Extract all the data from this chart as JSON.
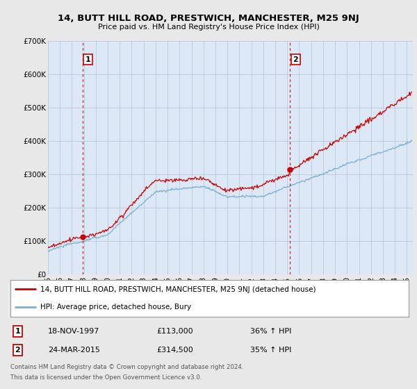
{
  "title": "14, BUTT HILL ROAD, PRESTWICH, MANCHESTER, M25 9NJ",
  "subtitle": "Price paid vs. HM Land Registry's House Price Index (HPI)",
  "ylim": [
    0,
    700000
  ],
  "yticks": [
    0,
    100000,
    200000,
    300000,
    400000,
    500000,
    600000,
    700000
  ],
  "ytick_labels": [
    "£0",
    "£100K",
    "£200K",
    "£300K",
    "£400K",
    "£500K",
    "£600K",
    "£700K"
  ],
  "xlim_start": 1995.0,
  "xlim_end": 2025.5,
  "bg_color": "#e8e8e8",
  "plot_bg_color": "#dce8f5",
  "grid_color": "#b0c4d8",
  "red_line_color": "#cc0000",
  "blue_line_color": "#7aafd4",
  "sale1_x": 1997.88,
  "sale1_y": 113000,
  "sale1_label": "1",
  "sale1_date": "18-NOV-1997",
  "sale1_price": "£113,000",
  "sale1_hpi": "36% ↑ HPI",
  "sale2_x": 2015.23,
  "sale2_y": 314500,
  "sale2_label": "2",
  "sale2_date": "24-MAR-2015",
  "sale2_price": "£314,500",
  "sale2_hpi": "35% ↑ HPI",
  "legend_red": "14, BUTT HILL ROAD, PRESTWICH, MANCHESTER, M25 9NJ (detached house)",
  "legend_blue": "HPI: Average price, detached house, Bury",
  "footer1": "Contains HM Land Registry data © Crown copyright and database right 2024.",
  "footer2": "This data is licensed under the Open Government Licence v3.0."
}
